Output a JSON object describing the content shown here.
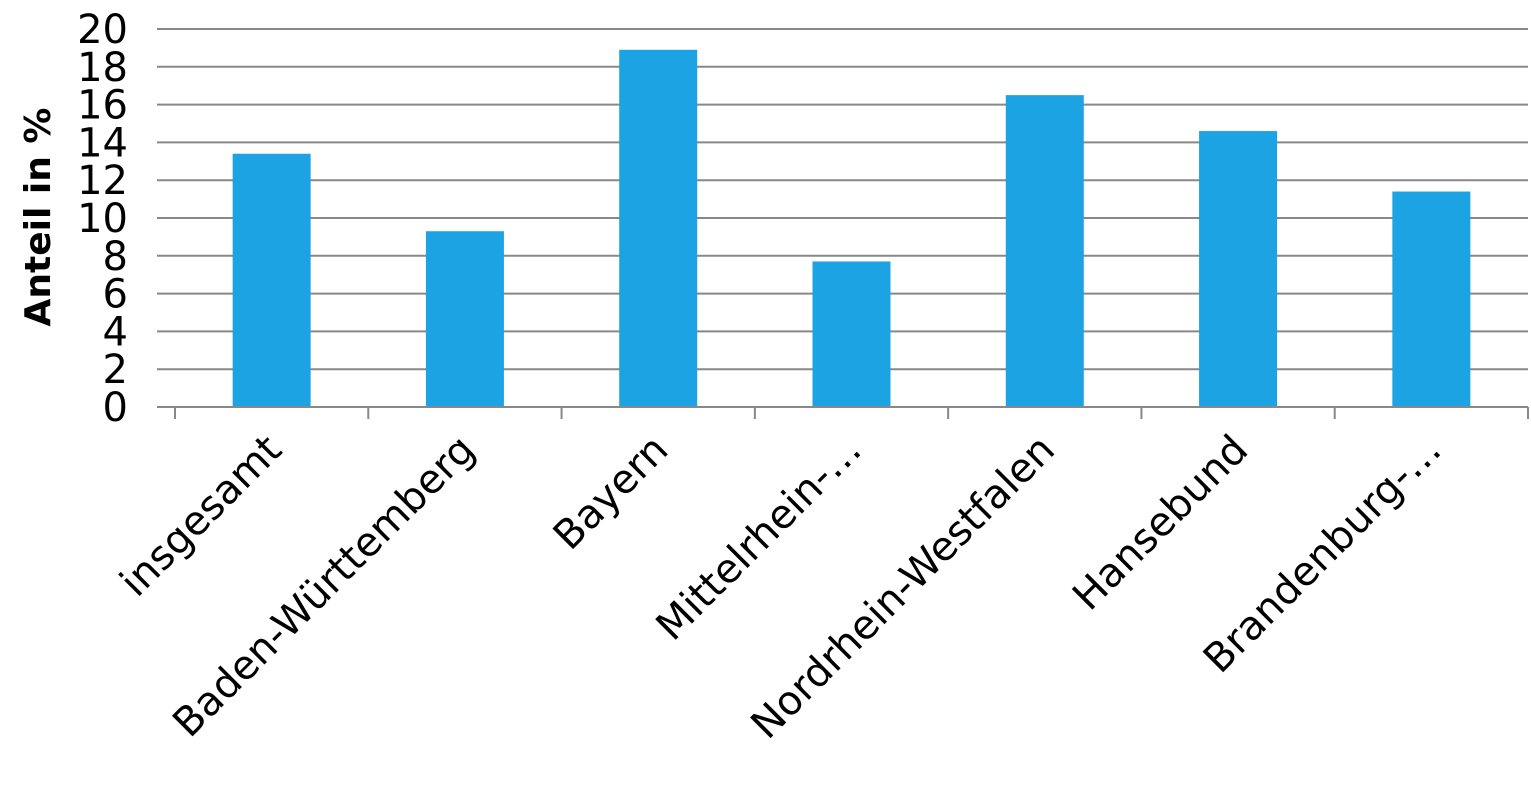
{
  "chart_data": {
    "type": "bar",
    "title": "",
    "xlabel": "",
    "ylabel": "Anteil in %",
    "categories": [
      "insgesamt",
      "Baden-Württemberg",
      "Bayern",
      "Mittelrhein-…",
      "Nordrhein-Westfalen",
      "Hansebund",
      "Brandenburg-…"
    ],
    "values": [
      13.4,
      9.3,
      18.9,
      7.7,
      16.5,
      14.6,
      11.4
    ],
    "ylim": [
      0,
      20
    ],
    "yticks": [
      "0",
      "2",
      "4",
      "6",
      "8",
      "10",
      "12",
      "14",
      "16",
      "18",
      "20"
    ],
    "grid": true,
    "legend": "none",
    "bar_color": "#1BA3E3"
  }
}
